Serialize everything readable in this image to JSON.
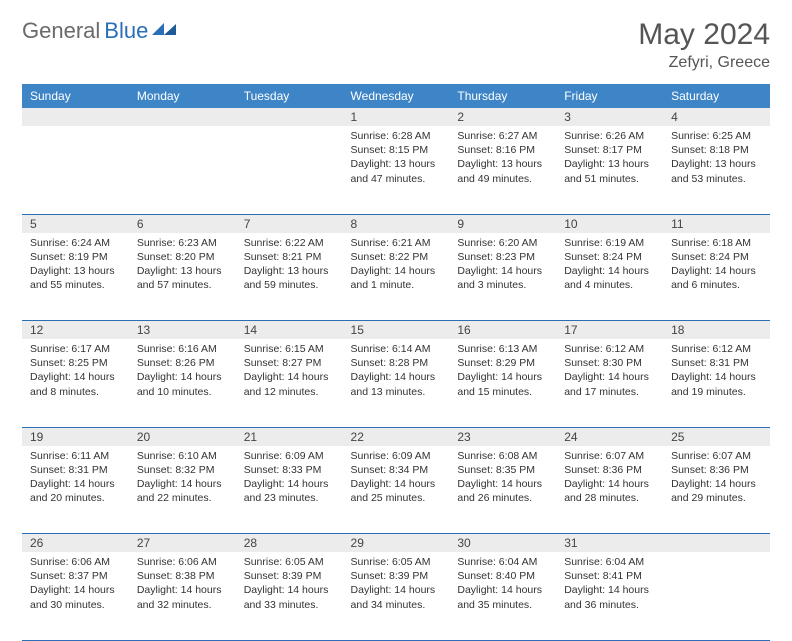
{
  "brand": {
    "part1": "General",
    "part2": "Blue"
  },
  "title": "May 2024",
  "location": "Zefyri, Greece",
  "colors": {
    "header_bg": "#3d85c6",
    "header_text": "#ffffff",
    "daynum_bg": "#ececec",
    "border": "#2a6fb5",
    "brand_gray": "#6a6a6a",
    "brand_blue": "#2a6fb5",
    "text": "#333333"
  },
  "day_headers": [
    "Sunday",
    "Monday",
    "Tuesday",
    "Wednesday",
    "Thursday",
    "Friday",
    "Saturday"
  ],
  "weeks": [
    [
      null,
      null,
      null,
      {
        "n": "1",
        "sr": "6:28 AM",
        "ss": "8:15 PM",
        "dl": "13 hours and 47 minutes."
      },
      {
        "n": "2",
        "sr": "6:27 AM",
        "ss": "8:16 PM",
        "dl": "13 hours and 49 minutes."
      },
      {
        "n": "3",
        "sr": "6:26 AM",
        "ss": "8:17 PM",
        "dl": "13 hours and 51 minutes."
      },
      {
        "n": "4",
        "sr": "6:25 AM",
        "ss": "8:18 PM",
        "dl": "13 hours and 53 minutes."
      }
    ],
    [
      {
        "n": "5",
        "sr": "6:24 AM",
        "ss": "8:19 PM",
        "dl": "13 hours and 55 minutes."
      },
      {
        "n": "6",
        "sr": "6:23 AM",
        "ss": "8:20 PM",
        "dl": "13 hours and 57 minutes."
      },
      {
        "n": "7",
        "sr": "6:22 AM",
        "ss": "8:21 PM",
        "dl": "13 hours and 59 minutes."
      },
      {
        "n": "8",
        "sr": "6:21 AM",
        "ss": "8:22 PM",
        "dl": "14 hours and 1 minute."
      },
      {
        "n": "9",
        "sr": "6:20 AM",
        "ss": "8:23 PM",
        "dl": "14 hours and 3 minutes."
      },
      {
        "n": "10",
        "sr": "6:19 AM",
        "ss": "8:24 PM",
        "dl": "14 hours and 4 minutes."
      },
      {
        "n": "11",
        "sr": "6:18 AM",
        "ss": "8:24 PM",
        "dl": "14 hours and 6 minutes."
      }
    ],
    [
      {
        "n": "12",
        "sr": "6:17 AM",
        "ss": "8:25 PM",
        "dl": "14 hours and 8 minutes."
      },
      {
        "n": "13",
        "sr": "6:16 AM",
        "ss": "8:26 PM",
        "dl": "14 hours and 10 minutes."
      },
      {
        "n": "14",
        "sr": "6:15 AM",
        "ss": "8:27 PM",
        "dl": "14 hours and 12 minutes."
      },
      {
        "n": "15",
        "sr": "6:14 AM",
        "ss": "8:28 PM",
        "dl": "14 hours and 13 minutes."
      },
      {
        "n": "16",
        "sr": "6:13 AM",
        "ss": "8:29 PM",
        "dl": "14 hours and 15 minutes."
      },
      {
        "n": "17",
        "sr": "6:12 AM",
        "ss": "8:30 PM",
        "dl": "14 hours and 17 minutes."
      },
      {
        "n": "18",
        "sr": "6:12 AM",
        "ss": "8:31 PM",
        "dl": "14 hours and 19 minutes."
      }
    ],
    [
      {
        "n": "19",
        "sr": "6:11 AM",
        "ss": "8:31 PM",
        "dl": "14 hours and 20 minutes."
      },
      {
        "n": "20",
        "sr": "6:10 AM",
        "ss": "8:32 PM",
        "dl": "14 hours and 22 minutes."
      },
      {
        "n": "21",
        "sr": "6:09 AM",
        "ss": "8:33 PM",
        "dl": "14 hours and 23 minutes."
      },
      {
        "n": "22",
        "sr": "6:09 AM",
        "ss": "8:34 PM",
        "dl": "14 hours and 25 minutes."
      },
      {
        "n": "23",
        "sr": "6:08 AM",
        "ss": "8:35 PM",
        "dl": "14 hours and 26 minutes."
      },
      {
        "n": "24",
        "sr": "6:07 AM",
        "ss": "8:36 PM",
        "dl": "14 hours and 28 minutes."
      },
      {
        "n": "25",
        "sr": "6:07 AM",
        "ss": "8:36 PM",
        "dl": "14 hours and 29 minutes."
      }
    ],
    [
      {
        "n": "26",
        "sr": "6:06 AM",
        "ss": "8:37 PM",
        "dl": "14 hours and 30 minutes."
      },
      {
        "n": "27",
        "sr": "6:06 AM",
        "ss": "8:38 PM",
        "dl": "14 hours and 32 minutes."
      },
      {
        "n": "28",
        "sr": "6:05 AM",
        "ss": "8:39 PM",
        "dl": "14 hours and 33 minutes."
      },
      {
        "n": "29",
        "sr": "6:05 AM",
        "ss": "8:39 PM",
        "dl": "14 hours and 34 minutes."
      },
      {
        "n": "30",
        "sr": "6:04 AM",
        "ss": "8:40 PM",
        "dl": "14 hours and 35 minutes."
      },
      {
        "n": "31",
        "sr": "6:04 AM",
        "ss": "8:41 PM",
        "dl": "14 hours and 36 minutes."
      },
      null
    ]
  ],
  "labels": {
    "sunrise": "Sunrise:",
    "sunset": "Sunset:",
    "daylight": "Daylight:"
  }
}
